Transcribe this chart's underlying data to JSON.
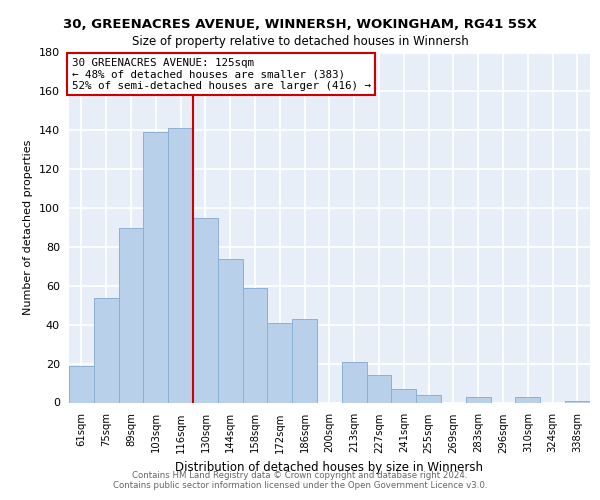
{
  "title_line1": "30, GREENACRES AVENUE, WINNERSH, WOKINGHAM, RG41 5SX",
  "title_line2": "Size of property relative to detached houses in Winnersh",
  "xlabel": "Distribution of detached houses by size in Winnersh",
  "ylabel": "Number of detached properties",
  "bar_labels": [
    "61sqm",
    "75sqm",
    "89sqm",
    "103sqm",
    "116sqm",
    "130sqm",
    "144sqm",
    "158sqm",
    "172sqm",
    "186sqm",
    "200sqm",
    "213sqm",
    "227sqm",
    "241sqm",
    "255sqm",
    "269sqm",
    "283sqm",
    "296sqm",
    "310sqm",
    "324sqm",
    "338sqm"
  ],
  "bar_values": [
    19,
    54,
    90,
    139,
    141,
    95,
    74,
    59,
    41,
    43,
    0,
    21,
    14,
    7,
    4,
    0,
    3,
    0,
    3,
    0,
    1
  ],
  "bar_color": "#b8d0ea",
  "bar_edge_color": "#8ab0d4",
  "annotation_title": "30 GREENACRES AVENUE: 125sqm",
  "annotation_line1": "← 48% of detached houses are smaller (383)",
  "annotation_line2": "52% of semi-detached houses are larger (416) →",
  "annotation_box_color": "#ffffff",
  "annotation_box_edge": "#cc0000",
  "vline_color": "#cc0000",
  "footer_line1": "Contains HM Land Registry data © Crown copyright and database right 2024.",
  "footer_line2": "Contains public sector information licensed under the Open Government Licence v3.0.",
  "ylim": [
    0,
    180
  ],
  "yticks": [
    0,
    20,
    40,
    60,
    80,
    100,
    120,
    140,
    160,
    180
  ],
  "background_color": "#e8eef8",
  "grid_color": "#ffffff",
  "vline_x_index": 4.5
}
